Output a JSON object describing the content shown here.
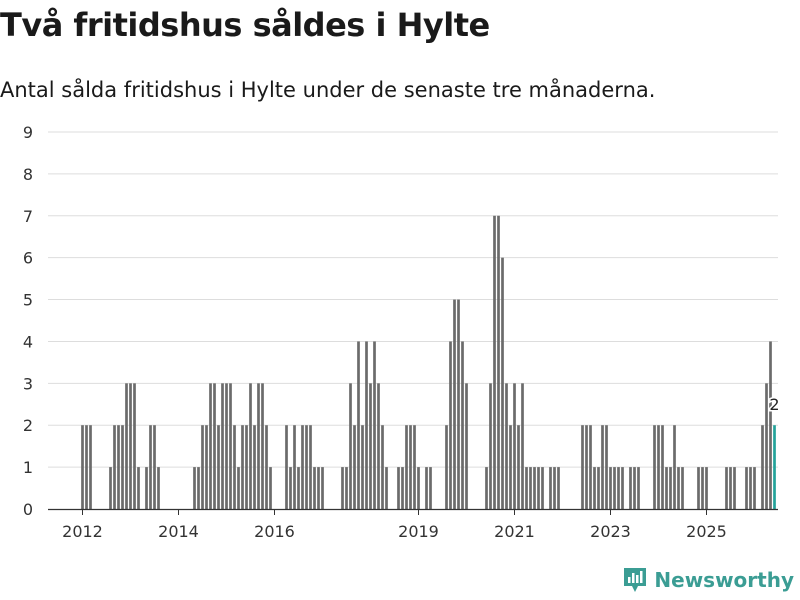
{
  "header": {
    "title": "Två fritidshus såldes i Hylte",
    "subtitle": "Antal sålda fritidshus i Hylte under de senaste tre månaderna."
  },
  "brand": {
    "name": "Newsworthy",
    "color": "#3b9d94"
  },
  "colors": {
    "bar": "#6b6b6b",
    "highlight": "#23a39a",
    "grid": "#dddddd",
    "axis": "#333333"
  },
  "chart_data": {
    "type": "bar",
    "title": "Två fritidshus såldes i Hylte",
    "subtitle": "Antal sålda fritidshus i Hylte under de senaste tre månaderna.",
    "xlabel": "",
    "ylabel": "",
    "ylim": [
      0,
      9
    ],
    "yticks": [
      0,
      1,
      2,
      3,
      4,
      5,
      6,
      7,
      8,
      9
    ],
    "grid": true,
    "x_start_year": 2011,
    "months_per_step": 1,
    "xticks": [
      {
        "label": "2012",
        "index": 12
      },
      {
        "label": "2014",
        "index": 36
      },
      {
        "label": "2016",
        "index": 60
      },
      {
        "label": "2019",
        "index": 96
      },
      {
        "label": "2021",
        "index": 120
      },
      {
        "label": "2023",
        "index": 144
      },
      {
        "label": "2025",
        "index": 168
      }
    ],
    "values": [
      0,
      0,
      0,
      0,
      0,
      0,
      0,
      0,
      0,
      0,
      0,
      0,
      2,
      2,
      2,
      0,
      0,
      0,
      0,
      1,
      2,
      2,
      2,
      3,
      3,
      3,
      1,
      0,
      1,
      2,
      2,
      1,
      0,
      0,
      0,
      0,
      0,
      0,
      0,
      0,
      1,
      1,
      2,
      2,
      3,
      3,
      2,
      3,
      3,
      3,
      2,
      1,
      2,
      2,
      3,
      2,
      3,
      3,
      2,
      1,
      0,
      0,
      0,
      2,
      1,
      2,
      1,
      2,
      2,
      2,
      1,
      1,
      1,
      0,
      0,
      0,
      0,
      1,
      1,
      3,
      2,
      4,
      2,
      4,
      3,
      4,
      3,
      2,
      1,
      0,
      0,
      1,
      1,
      2,
      2,
      2,
      1,
      0,
      1,
      1,
      0,
      0,
      0,
      2,
      4,
      5,
      5,
      4,
      3,
      0,
      0,
      0,
      0,
      1,
      3,
      7,
      7,
      6,
      3,
      2,
      3,
      2,
      3,
      1,
      1,
      1,
      1,
      1,
      0,
      1,
      1,
      1,
      0,
      0,
      0,
      0,
      0,
      2,
      2,
      2,
      1,
      1,
      2,
      2,
      1,
      1,
      1,
      1,
      0,
      1,
      1,
      1,
      0,
      0,
      0,
      2,
      2,
      2,
      1,
      1,
      2,
      1,
      1,
      0,
      0,
      0,
      1,
      1,
      1,
      0,
      0,
      0,
      0,
      1,
      1,
      1,
      0,
      0,
      1,
      1,
      1,
      0,
      2,
      3,
      4,
      2
    ],
    "highlight_index": 185,
    "annotation": {
      "index": 185,
      "text": "2"
    }
  }
}
